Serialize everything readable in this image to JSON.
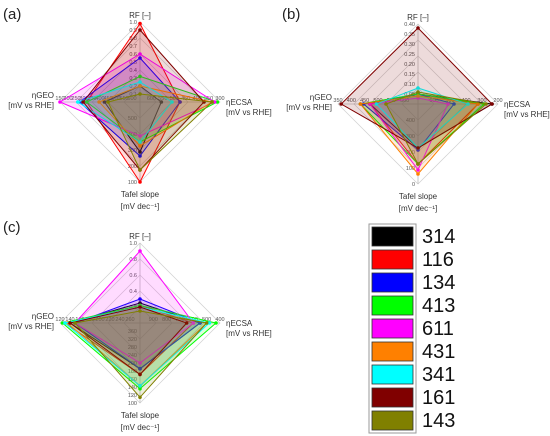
{
  "colors": {
    "314": "#000000",
    "116": "#ff0000",
    "134": "#0000ff",
    "413": "#00ff00",
    "611": "#ff00ff",
    "431": "#ff8000",
    "341": "#00ffff",
    "161": "#800000",
    "143": "#808000"
  },
  "legend": {
    "entries": [
      "314",
      "116",
      "134",
      "413",
      "611",
      "431",
      "341",
      "161",
      "143"
    ]
  },
  "chart_data": [
    {
      "type": "radar",
      "panel": "(a)",
      "axes": {
        "top": {
          "title": "RF [–]",
          "range": [
            0,
            1.0
          ],
          "ticks": [
            "0.1",
            "0.2",
            "0.3",
            "0.4",
            "0.5",
            "0.6",
            "0.7",
            "0.8",
            "0.9",
            "1.0"
          ]
        },
        "right": {
          "title_main": "ηECSA",
          "title_sub": "[mV vs RHE]",
          "range": [
            600,
            300
          ],
          "ticks": [
            "600",
            "550",
            "500",
            "450",
            "400",
            "350",
            "300"
          ]
        },
        "bottom": {
          "title_main": "Tafel slope",
          "title_sub": "[mV dec⁻¹]",
          "range": [
            500,
            100
          ],
          "ticks": [
            "500",
            "400",
            "300",
            "200",
            "100"
          ]
        },
        "left": {
          "title_main": "ηGEO",
          "title_sub": "[mV vs RHE]",
          "range": [
            600,
            150
          ],
          "ticks": [
            "600",
            "550",
            "500",
            "450",
            "400",
            "350",
            "300",
            "250",
            "200",
            "150"
          ]
        }
      },
      "series": [
        {
          "name": "314",
          "values": {
            "top": 0.2,
            "right": 520,
            "bottom": 250,
            "left": 400
          }
        },
        {
          "name": "116",
          "values": {
            "top": 0.98,
            "right": 450,
            "bottom": 100,
            "left": 300
          }
        },
        {
          "name": "134",
          "values": {
            "top": 0.55,
            "right": 450,
            "bottom": 230,
            "left": 260
          }
        },
        {
          "name": "413",
          "values": {
            "top": 0.32,
            "right": 310,
            "bottom": 300,
            "left": 300
          }
        },
        {
          "name": "611",
          "values": {
            "top": 0.6,
            "right": 320,
            "bottom": 330,
            "left": 150
          }
        },
        {
          "name": "431",
          "values": {
            "top": 0.2,
            "right": 330,
            "bottom": 280,
            "left": 370
          }
        },
        {
          "name": "341",
          "values": {
            "top": 0.25,
            "right": 480,
            "bottom": 300,
            "left": 250
          }
        },
        {
          "name": "161",
          "values": {
            "top": 0.9,
            "right": 360,
            "bottom": 160,
            "left": 280
          }
        },
        {
          "name": "143",
          "values": {
            "top": 0.1,
            "right": 330,
            "bottom": 160,
            "left": 420
          }
        }
      ]
    },
    {
      "type": "radar",
      "panel": "(b)",
      "axes": {
        "top": {
          "title": "RF [–]",
          "range": [
            0,
            0.4
          ],
          "ticks": [
            "0.05",
            "0.10",
            "0.15",
            "0.20",
            "0.25",
            "0.30",
            "0.35",
            "0.40"
          ]
        },
        "right": {
          "title_main": "ηECSA",
          "title_sub": "[mV vs RHE]",
          "range": [
            600,
            200
          ],
          "ticks": [
            "600",
            "500",
            "400",
            "300",
            "200"
          ]
        },
        "bottom": {
          "title_main": "Tafel slope",
          "title_sub": "[mV dec⁻¹]",
          "range": [
            400,
            0
          ],
          "ticks": [
            "400",
            "300",
            "200",
            "100",
            "0"
          ]
        },
        "left": {
          "title_main": "ηGEO",
          "title_sub": "[mV vs RHE]",
          "range": [
            600,
            350
          ],
          "ticks": [
            "600",
            "550",
            "500",
            "450",
            "400",
            "350"
          ]
        }
      },
      "series": [
        {
          "name": "314",
          "values": {
            "top": 0.05,
            "right": 230,
            "bottom": 180,
            "left": 450
          }
        },
        {
          "name": "116",
          "values": {
            "top": 0.05,
            "right": 300,
            "bottom": 100,
            "left": 450
          }
        },
        {
          "name": "134",
          "values": {
            "top": 0.05,
            "right": 420,
            "bottom": 170,
            "left": 430
          }
        },
        {
          "name": "413",
          "values": {
            "top": 0.05,
            "right": 270,
            "bottom": 100,
            "left": 420
          }
        },
        {
          "name": "611",
          "values": {
            "top": 0.03,
            "right": 450,
            "bottom": 70,
            "left": 450
          }
        },
        {
          "name": "431",
          "values": {
            "top": 0.04,
            "right": 300,
            "bottom": 50,
            "left": 420
          }
        },
        {
          "name": "341",
          "values": {
            "top": 0.08,
            "right": 350,
            "bottom": 180,
            "left": 470
          }
        },
        {
          "name": "161",
          "values": {
            "top": 0.38,
            "right": 230,
            "bottom": 180,
            "left": 360
          }
        },
        {
          "name": "143",
          "values": {
            "top": 0.06,
            "right": 260,
            "bottom": 100,
            "left": 500
          }
        }
      ]
    },
    {
      "type": "radar",
      "panel": "(c)",
      "axes": {
        "top": {
          "title": "RF [–]",
          "range": [
            0,
            1.0
          ],
          "ticks": [
            "0.2",
            "0.4",
            "0.6",
            "0.8",
            "1.0"
          ]
        },
        "right": {
          "title_main": "ηECSA",
          "title_sub": "[mV vs RHE]",
          "range": [
            1000,
            400
          ],
          "ticks": [
            "900",
            "800",
            "700",
            "600",
            "500",
            "400"
          ]
        },
        "bottom": {
          "title_main": "Tafel slope",
          "title_sub": "[mV dec⁻¹]",
          "range": [
            380,
            100
          ],
          "ticks": [
            "360",
            "320",
            "280",
            "240",
            "200",
            "180",
            "160",
            "140",
            "120",
            "100"
          ]
        },
        "left": {
          "title_main": "ηGEO",
          "title_sub": "[mV vs RHE]",
          "range": [
            280,
            120
          ],
          "ticks": [
            "260",
            "240",
            "220",
            "200",
            "180",
            "160",
            "140",
            "120"
          ]
        }
      },
      "series": [
        {
          "name": "314",
          "values": {
            "top": 0.25,
            "right": 550,
            "bottom": 220,
            "left": 140
          }
        },
        {
          "name": "116",
          "values": {
            "top": 0.22,
            "right": 600,
            "bottom": 200,
            "left": 130
          }
        },
        {
          "name": "134",
          "values": {
            "top": 0.3,
            "right": 550,
            "bottom": 220,
            "left": 150
          }
        },
        {
          "name": "413",
          "values": {
            "top": 0.22,
            "right": 430,
            "bottom": 150,
            "left": 125
          }
        },
        {
          "name": "611",
          "values": {
            "top": 0.9,
            "right": 600,
            "bottom": 240,
            "left": 150
          }
        },
        {
          "name": "431",
          "values": {
            "top": 0.2,
            "right": 500,
            "bottom": 160,
            "left": 135
          }
        },
        {
          "name": "341",
          "values": {
            "top": 0.2,
            "right": 480,
            "bottom": 160,
            "left": 130
          }
        },
        {
          "name": "161",
          "values": {
            "top": 0.2,
            "right": 650,
            "bottom": 200,
            "left": 140
          }
        },
        {
          "name": "143",
          "values": {
            "top": 0.15,
            "right": 500,
            "bottom": 120,
            "left": 150
          }
        }
      ]
    }
  ]
}
